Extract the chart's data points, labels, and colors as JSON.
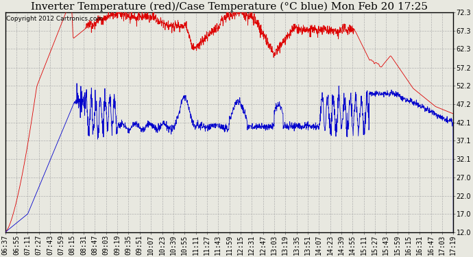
{
  "title": "Inverter Temperature (red)/Case Temperature (°C blue) Mon Feb 20 17:25",
  "copyright": "Copyright 2012 Cartronics.com",
  "yticks": [
    12.0,
    17.0,
    22.0,
    27.0,
    32.1,
    37.1,
    42.1,
    47.2,
    52.2,
    57.2,
    62.3,
    67.3,
    72.3
  ],
  "ylim": [
    12.0,
    72.3
  ],
  "xtick_labels": [
    "06:37",
    "06:55",
    "07:11",
    "07:27",
    "07:43",
    "07:59",
    "08:15",
    "08:31",
    "08:47",
    "09:03",
    "09:19",
    "09:35",
    "09:51",
    "10:07",
    "10:23",
    "10:39",
    "10:55",
    "11:11",
    "11:27",
    "11:43",
    "11:59",
    "12:15",
    "12:31",
    "12:47",
    "13:03",
    "13:19",
    "13:35",
    "13:51",
    "14:07",
    "14:23",
    "14:39",
    "14:55",
    "15:11",
    "15:27",
    "15:43",
    "15:59",
    "16:15",
    "16:31",
    "16:47",
    "17:03",
    "17:19"
  ],
  "background_color": "#e8e8e0",
  "plot_bg_color": "#e8e8e0",
  "grid_color": "#b0b0b0",
  "red_color": "#dd0000",
  "blue_color": "#0000cc",
  "title_fontsize": 11,
  "copyright_fontsize": 6.5,
  "tick_fontsize": 7
}
